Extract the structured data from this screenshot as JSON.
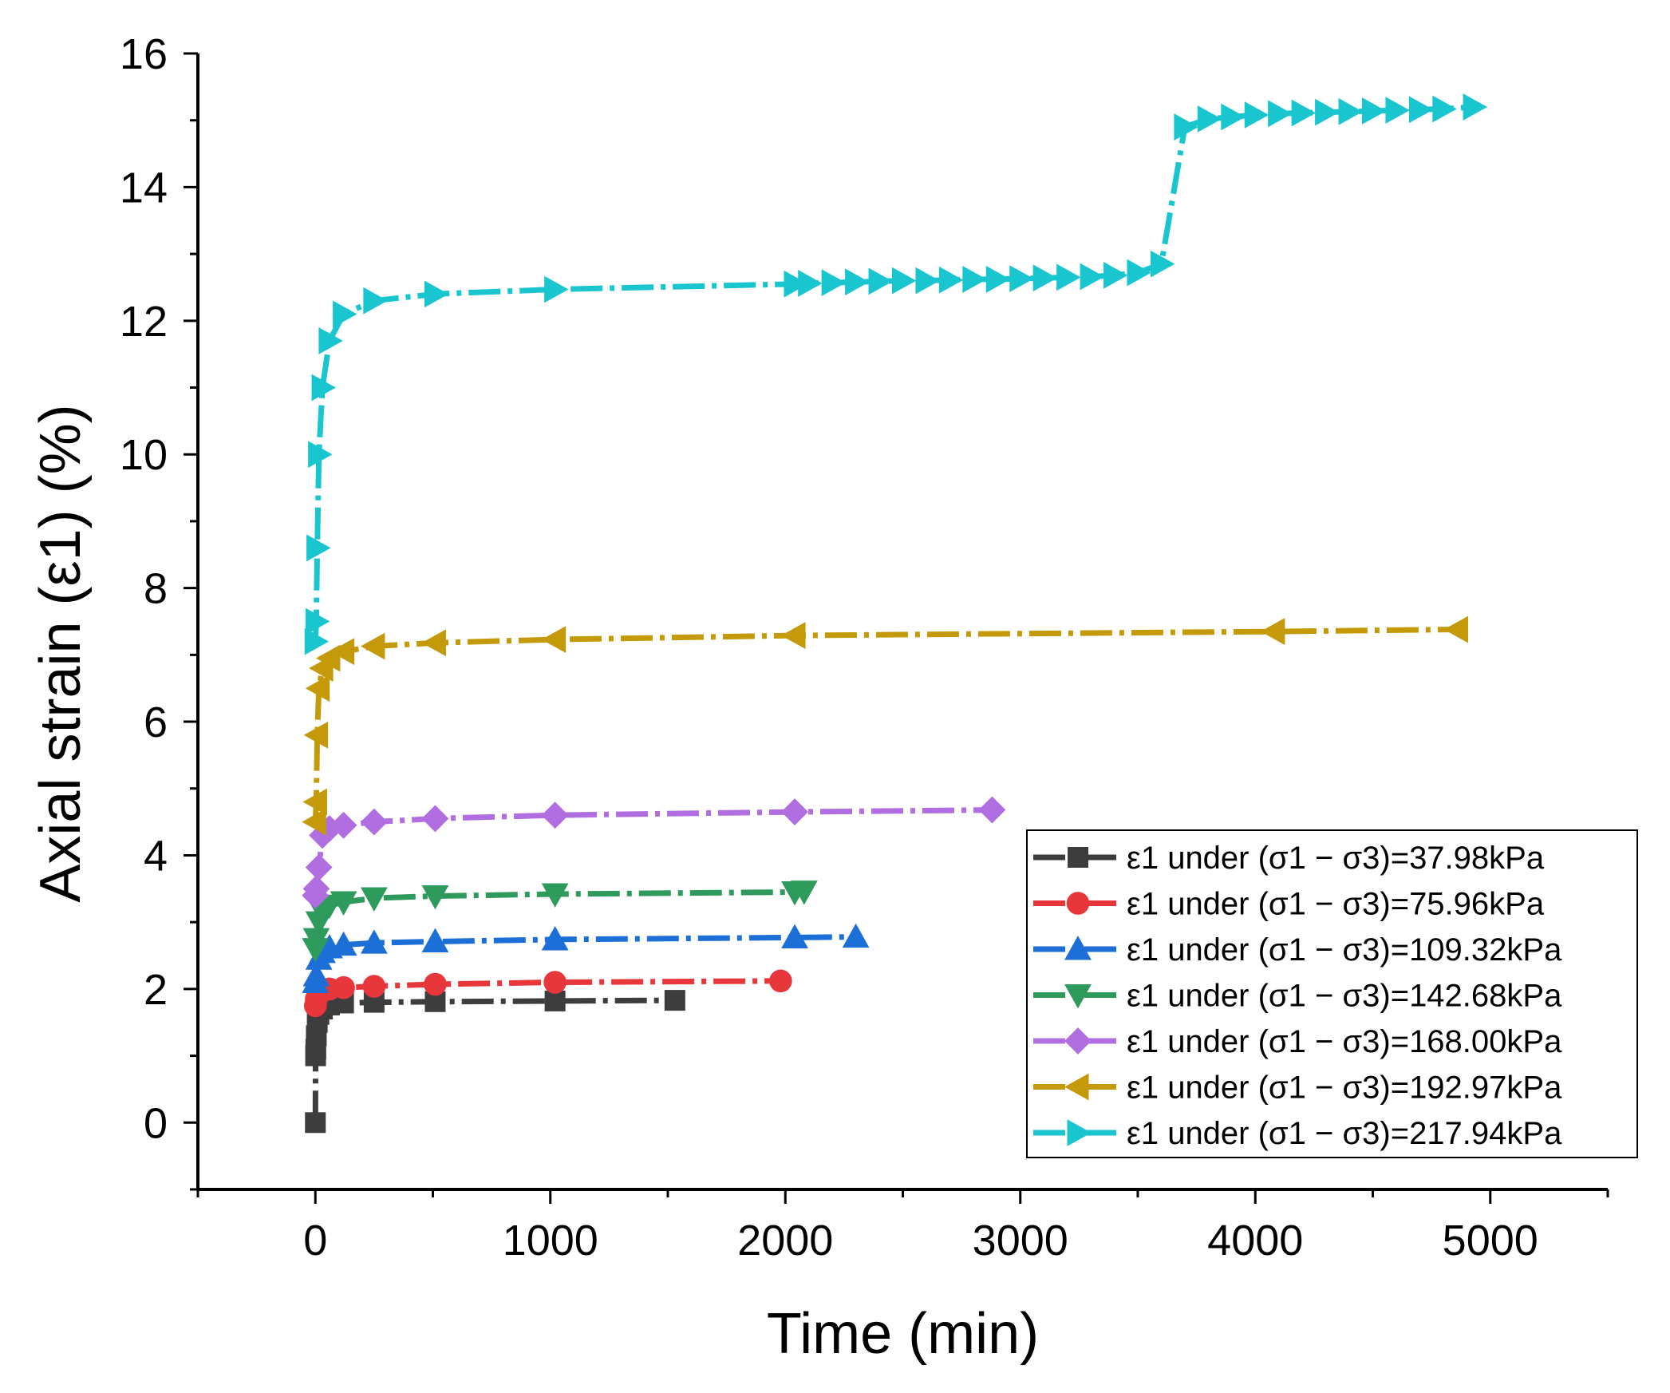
{
  "chart_data": {
    "type": "line",
    "title": "",
    "xlabel": "Time (min)",
    "ylabel": "Axial strain (ε1) (%)",
    "xlim": [
      -500,
      5500
    ],
    "ylim": [
      -1,
      16
    ],
    "xticks": [
      0,
      1000,
      2000,
      3000,
      4000,
      5000
    ],
    "yticks": [
      0,
      2,
      4,
      6,
      8,
      10,
      12,
      14,
      16
    ],
    "grid": false,
    "legend_position": "bottom-right",
    "series": [
      {
        "name": "ε1 under (σ1 − σ3)=37.98kPa",
        "color": "#3d3d3d",
        "marker": "square",
        "x": [
          0,
          1,
          2,
          4,
          8,
          15,
          30,
          60,
          120,
          250,
          510,
          1020,
          1530
        ],
        "y": [
          0,
          1.0,
          1.1,
          1.3,
          1.5,
          1.62,
          1.7,
          1.76,
          1.79,
          1.8,
          1.81,
          1.82,
          1.83
        ]
      },
      {
        "name": "ε1 under (σ1 − σ3)=75.96kPa",
        "color": "#e8373a",
        "marker": "circle",
        "x": [
          0,
          4,
          15,
          30,
          60,
          120,
          250,
          510,
          1020,
          1980
        ],
        "y": [
          1.75,
          1.85,
          1.93,
          1.97,
          2.0,
          2.02,
          2.04,
          2.07,
          2.1,
          2.12
        ]
      },
      {
        "name": "ε1 under (σ1 − σ3)=109.32kPa",
        "color": "#1d6fd8",
        "marker": "triangle-up",
        "x": [
          0,
          4,
          15,
          30,
          60,
          120,
          250,
          510,
          1020,
          2040,
          2300
        ],
        "y": [
          2.1,
          2.2,
          2.45,
          2.55,
          2.62,
          2.66,
          2.69,
          2.71,
          2.74,
          2.77,
          2.78
        ]
      },
      {
        "name": "ε1 under (σ1 − σ3)=142.68kPa",
        "color": "#2e9a5c",
        "marker": "triangle-down",
        "x": [
          0,
          4,
          15,
          30,
          60,
          120,
          250,
          510,
          1020,
          2040,
          2080
        ],
        "y": [
          2.6,
          2.75,
          3.0,
          3.15,
          3.25,
          3.3,
          3.36,
          3.39,
          3.42,
          3.45,
          3.46
        ]
      },
      {
        "name": "ε1 under (σ1 − σ3)=168.00kPa",
        "color": "#b06ee0",
        "marker": "diamond",
        "x": [
          0,
          4,
          15,
          30,
          60,
          120,
          250,
          510,
          1020,
          2040,
          2880
        ],
        "y": [
          3.4,
          3.5,
          3.82,
          4.3,
          4.4,
          4.45,
          4.5,
          4.55,
          4.6,
          4.65,
          4.68
        ]
      },
      {
        "name": "ε1 under (σ1 − σ3)=192.97kPa",
        "color": "#c49a0a",
        "marker": "triangle-left",
        "x": [
          0,
          4,
          8,
          15,
          30,
          60,
          120,
          250,
          510,
          1020,
          2040,
          4080,
          4860
        ],
        "y": [
          4.5,
          4.8,
          5.8,
          6.5,
          6.8,
          6.95,
          7.05,
          7.13,
          7.18,
          7.23,
          7.29,
          7.35,
          7.38
        ]
      },
      {
        "name": "ε1 under (σ1 − σ3)=217.94kPa",
        "color": "#19c6d0",
        "marker": "triangle-right",
        "x": [
          0,
          4,
          8,
          15,
          30,
          60,
          120,
          250,
          510,
          1020,
          2040,
          2100,
          2200,
          2300,
          2400,
          2500,
          2600,
          2700,
          2800,
          2900,
          3000,
          3100,
          3200,
          3300,
          3400,
          3500,
          3600,
          3700,
          3800,
          3900,
          4000,
          4100,
          4200,
          4300,
          4400,
          4500,
          4600,
          4700,
          4800,
          4930
        ],
        "y": [
          7.2,
          7.5,
          8.6,
          10.0,
          11.0,
          11.7,
          12.1,
          12.3,
          12.4,
          12.47,
          12.55,
          12.56,
          12.57,
          12.58,
          12.59,
          12.6,
          12.6,
          12.61,
          12.62,
          12.62,
          12.63,
          12.64,
          12.65,
          12.66,
          12.68,
          12.72,
          12.85,
          14.9,
          15.02,
          15.05,
          15.08,
          15.1,
          15.11,
          15.12,
          15.13,
          15.14,
          15.15,
          15.16,
          15.17,
          15.2
        ]
      }
    ]
  }
}
